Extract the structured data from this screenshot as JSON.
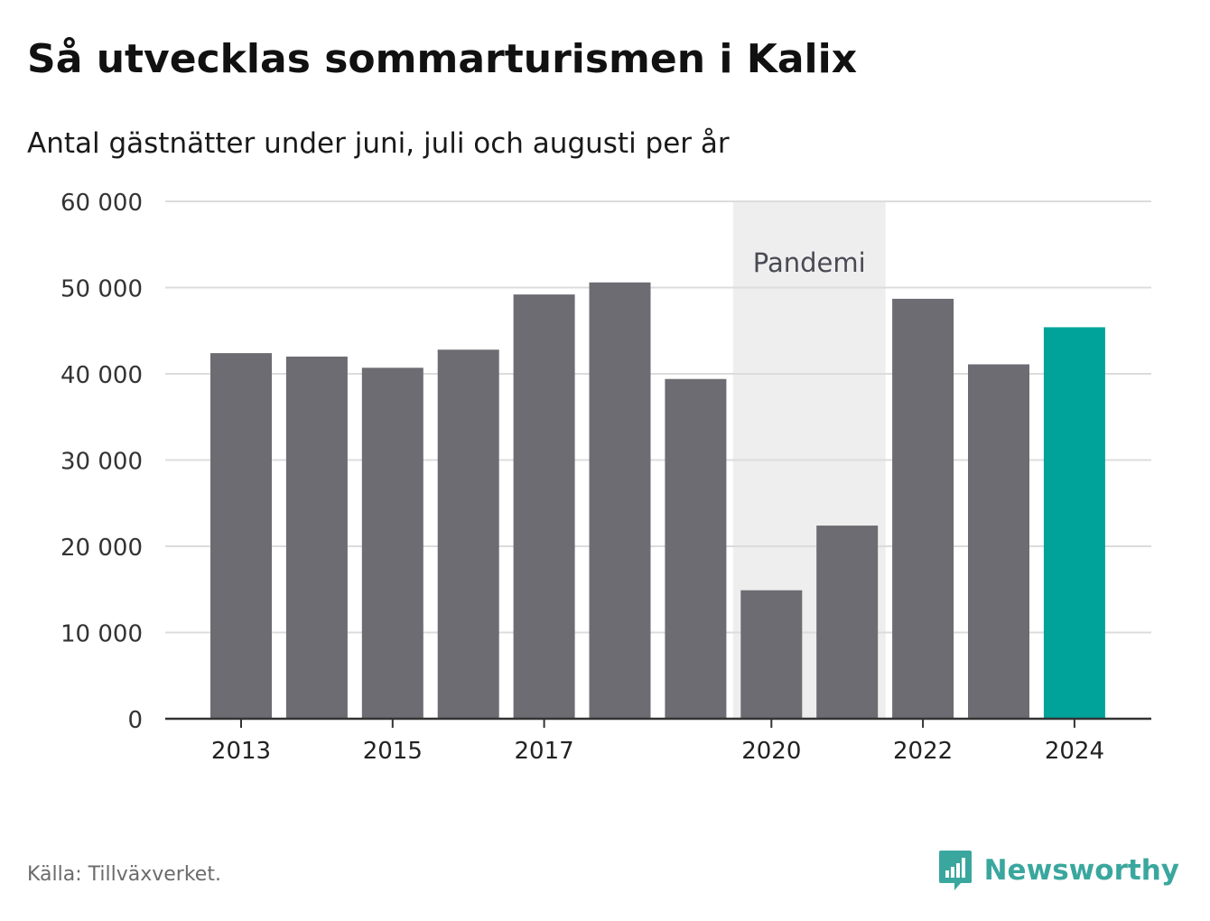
{
  "title": "Så utvecklas sommarturismen i Kalix",
  "subtitle": "Antal gästnätter under juni, juli och augusti per år",
  "source": "Källa: Tillväxverket.",
  "brand": "Newsworthy",
  "colors": {
    "bar": "#6d6c72",
    "highlight": "#00a39a",
    "pandemic_band": "#eeeeee",
    "grid": "#dcdcdc",
    "axis": "#333333",
    "brand": "#3aa79e"
  },
  "chart_data": {
    "type": "bar",
    "categories": [
      "2013",
      "2014",
      "2015",
      "2016",
      "2017",
      "2018",
      "2019",
      "2020",
      "2021",
      "2022",
      "2023",
      "2024"
    ],
    "values": [
      42400,
      42000,
      40700,
      42800,
      49200,
      50600,
      39400,
      14900,
      22400,
      48700,
      41100,
      45400
    ],
    "highlight_category": "2024",
    "ylim": [
      0,
      60000
    ],
    "yticks": [
      0,
      10000,
      20000,
      30000,
      40000,
      50000,
      60000
    ],
    "ytick_labels": [
      "0",
      "10 000",
      "20 000",
      "30 000",
      "40 000",
      "50 000",
      "60 000"
    ],
    "xtick_labels": [
      "2013",
      "2015",
      "2017",
      "2020",
      "2022",
      "2024"
    ],
    "grid": true,
    "annotation": {
      "label": "Pandemi",
      "range": [
        "2020",
        "2021"
      ]
    }
  }
}
